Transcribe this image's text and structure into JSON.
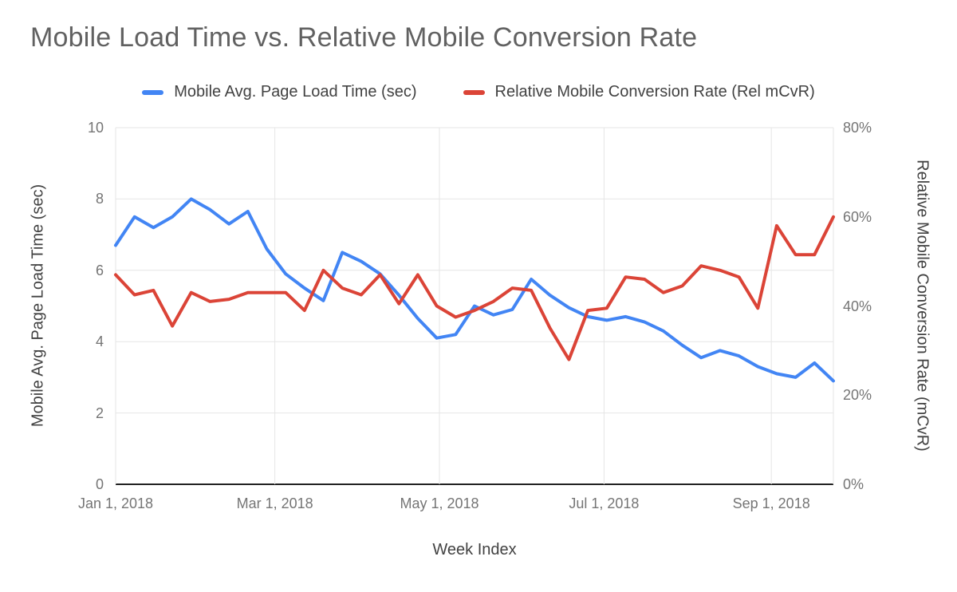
{
  "title": "Mobile Load Time vs. Relative Mobile Conversion Rate",
  "legend": [
    {
      "label": "Mobile Avg. Page Load Time (sec)",
      "color": "#4285F4"
    },
    {
      "label": "Relative Mobile Conversion Rate (Rel mCvR)",
      "color": "#DB4437"
    }
  ],
  "colors": {
    "blue": "#4285F4",
    "red": "#DB4437",
    "grid": "#E6E6E6",
    "axis_line": "#212121",
    "background": "#FFFFFF"
  },
  "chart_data": {
    "type": "line",
    "title": "Mobile Load Time vs. Relative Mobile Conversion Rate",
    "xlabel": "Week Index",
    "x_description": "weekly data points starting Jan 1, 2018",
    "x": [
      1,
      2,
      3,
      4,
      5,
      6,
      7,
      8,
      9,
      10,
      11,
      12,
      13,
      14,
      15,
      16,
      17,
      18,
      19,
      20,
      21,
      22,
      23,
      24,
      25,
      26,
      27,
      28,
      29,
      30,
      31,
      32,
      33,
      34,
      35,
      36,
      37,
      38,
      39
    ],
    "x_tick_labels": [
      "Jan 1, 2018",
      "Mar 1, 2018",
      "May 1, 2018",
      "Jul 1, 2018",
      "Sep 1, 2018"
    ],
    "x_tick_day_offsets": [
      0,
      59,
      120,
      181,
      243
    ],
    "x_total_days": 266,
    "grid": true,
    "legend_position": "top",
    "left_axis": {
      "label": "Mobile Avg. Page Load Time (sec)",
      "range": [
        0,
        10
      ],
      "ticks": [
        0,
        2,
        4,
        6,
        8,
        10
      ]
    },
    "right_axis": {
      "label": "Relative Mobile Conversion Rate (mCvR)",
      "range": [
        0,
        80
      ],
      "ticks": [
        {
          "value": 0,
          "label": "0%"
        },
        {
          "value": 20,
          "label": "20%"
        },
        {
          "value": 40,
          "label": "40%"
        },
        {
          "value": 60,
          "label": "60%"
        },
        {
          "value": 80,
          "label": "80%"
        }
      ]
    },
    "series": [
      {
        "name": "Mobile Avg. Page Load Time (sec)",
        "axis": "left",
        "unit": "sec",
        "color": "#4285F4",
        "values": [
          6.7,
          7.5,
          7.2,
          7.5,
          8.0,
          7.7,
          7.3,
          7.65,
          6.6,
          5.9,
          5.5,
          5.15,
          6.5,
          6.25,
          5.9,
          5.3,
          4.65,
          4.1,
          4.2,
          5.0,
          4.75,
          4.9,
          5.75,
          5.3,
          4.95,
          4.7,
          4.6,
          4.7,
          4.55,
          4.3,
          3.9,
          3.55,
          3.75,
          3.6,
          3.3,
          3.1,
          3.0,
          3.4,
          2.9
        ]
      },
      {
        "name": "Relative Mobile Conversion Rate (Rel mCvR)",
        "axis": "right",
        "unit": "%",
        "color": "#DB4437",
        "values": [
          47,
          42.5,
          43.5,
          35.5,
          43,
          41,
          41.5,
          43,
          43,
          43,
          39,
          48,
          44,
          42.5,
          47,
          40.5,
          47,
          40,
          37.5,
          39,
          41,
          44,
          43.5,
          35,
          28,
          39,
          39.5,
          46.5,
          46,
          43,
          44.5,
          49,
          48,
          46.5,
          39.5,
          58,
          51.5,
          51.5,
          60
        ]
      }
    ]
  }
}
